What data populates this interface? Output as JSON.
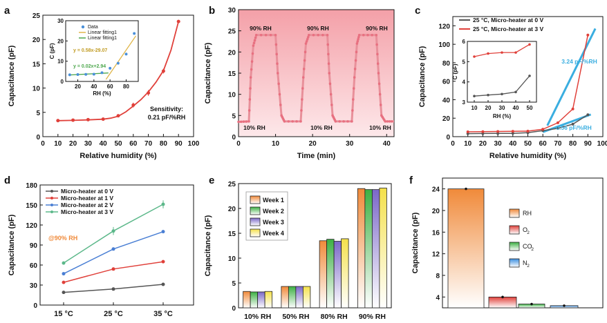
{
  "colors": {
    "red": "#e0403a",
    "blue": "#4a7fd4",
    "grey": "#555555",
    "green": "#5cb88a",
    "pink": "#e8909a",
    "cyan": "#3aaee0",
    "fit_yellow": "#e0b64a",
    "fit_green": "#4aa64a",
    "orange": "#f08a3a",
    "bar_green": "#3cb043",
    "purple": "#7b68c8",
    "yellow": "#f4e04a"
  },
  "panel_labels": [
    "a",
    "b",
    "c",
    "d",
    "e",
    "f"
  ],
  "chart_data": [
    {
      "id": "a",
      "type": "scatter",
      "title": "",
      "xlabel": "Relative humidity (%)",
      "ylabel": "Capacitance (pF)",
      "xlim": [
        0,
        100
      ],
      "ylim": [
        0,
        25
      ],
      "xticks": [
        "0",
        "10",
        "20",
        "30",
        "40",
        "50",
        "60",
        "70",
        "80",
        "90",
        "100"
      ],
      "yticks": [
        "0",
        "5",
        "10",
        "15",
        "20",
        "25"
      ],
      "series": [
        {
          "name": "Data",
          "x": [
            10,
            20,
            30,
            40,
            50,
            60,
            70,
            80,
            90
          ],
          "y": [
            3.3,
            3.4,
            3.5,
            3.6,
            4.3,
            6.5,
            9.0,
            13.5,
            23.7
          ],
          "err": [
            0.1,
            0.1,
            0.1,
            0.1,
            0.2,
            0.5,
            0.6,
            0.5,
            0.3
          ]
        }
      ],
      "fit_curve": {
        "x": [
          10,
          20,
          30,
          40,
          45,
          50,
          55,
          60,
          65,
          70,
          75,
          80,
          85,
          90
        ],
        "y": [
          3.3,
          3.35,
          3.45,
          3.6,
          3.8,
          4.2,
          5.1,
          6.3,
          7.6,
          9.2,
          11.2,
          13.6,
          17.8,
          23.7
        ]
      },
      "annotations": [
        "Sensitivity:",
        "0.21 pF/%RH"
      ],
      "inset": {
        "xlabel": "RH (%)",
        "ylabel": "C (pF)",
        "xlim": [
          5,
          95
        ],
        "ylim": [
          0,
          30
        ],
        "xticks": [
          "20",
          "40",
          "60",
          "80"
        ],
        "yticks": [
          "0",
          "10",
          "20",
          "30"
        ],
        "legend": [
          "Data",
          "Linear fitting1",
          "Linear fitting1"
        ],
        "points": {
          "x": [
            10,
            20,
            30,
            40,
            50,
            60,
            70,
            80,
            90
          ],
          "y": [
            3.3,
            3.4,
            3.5,
            3.6,
            4.3,
            6.5,
            9.0,
            13.5,
            23.7
          ]
        },
        "fit_low": {
          "x": [
            10,
            58
          ],
          "y": [
            3.2,
            4.2
          ],
          "label": "y = 0.02x+2.94"
        },
        "fit_high": {
          "x": [
            55,
            92
          ],
          "y": [
            1.0,
            22.5
          ],
          "label": "y = 0.58x-29.07"
        }
      }
    },
    {
      "id": "b",
      "type": "line",
      "title": "",
      "xlabel": "Time (min)",
      "ylabel": "Capacitance (pF)",
      "xlim": [
        0,
        42
      ],
      "ylim": [
        0,
        30
      ],
      "xticks": [
        "0",
        "10",
        "20",
        "30",
        "40"
      ],
      "yticks": [
        "0",
        "5",
        "10",
        "15",
        "20",
        "25",
        "30"
      ],
      "series": [
        {
          "name": "Capacitance",
          "x": [
            0,
            2.8,
            3.3,
            4.0,
            4.8,
            10.0,
            10.6,
            11.6,
            12.4,
            16.8,
            17.5,
            18.2,
            19.0,
            24.0,
            24.5,
            25.4,
            26.2,
            30.6,
            31.3,
            32.0,
            32.6,
            37.2,
            37.8,
            38.6,
            39.6,
            42
          ],
          "y": [
            3.5,
            3.6,
            14,
            21.5,
            24.0,
            24.0,
            15,
            5,
            3.6,
            3.6,
            14,
            22,
            24.0,
            24.0,
            15,
            5,
            3.6,
            3.6,
            14,
            22,
            24.0,
            24.0,
            15,
            5,
            3.6,
            3.6
          ]
        }
      ],
      "annotations": [
        "90% RH",
        "90% RH",
        "90% RH",
        "10% RH",
        "10% RH",
        "10% RH"
      ]
    },
    {
      "id": "c",
      "type": "line",
      "title": "",
      "xlabel": "Relative humidity (%)",
      "ylabel": "Capacitance (pF)",
      "xlim": [
        0,
        100
      ],
      "ylim": [
        0,
        130
      ],
      "xticks": [
        "0",
        "10",
        "20",
        "30",
        "40",
        "50",
        "60",
        "70",
        "80",
        "90",
        "100"
      ],
      "yticks": [
        "0",
        "20",
        "40",
        "60",
        "80",
        "100",
        "120"
      ],
      "series": [
        {
          "name": "25 °C, Micro-heater at 0 V",
          "x": [
            10,
            20,
            30,
            40,
            50,
            60,
            70,
            80,
            90
          ],
          "y": [
            3.3,
            3.4,
            3.5,
            3.6,
            4.3,
            6.5,
            9.0,
            13.5,
            23.7
          ]
        },
        {
          "name": "25 °C, Micro-heater at 3 V",
          "x": [
            10,
            20,
            30,
            40,
            50,
            60,
            70,
            80,
            90
          ],
          "y": [
            5.2,
            5.4,
            5.6,
            5.8,
            6.0,
            8,
            15,
            30,
            110
          ]
        }
      ],
      "fits": [
        {
          "label": "3.24 pF/%RH",
          "x": [
            63,
            95
          ],
          "y": [
            12,
            117
          ]
        },
        {
          "label": "0.56 pF/%RH",
          "x": [
            60,
            92
          ],
          "y": [
            5,
            24
          ]
        }
      ],
      "inset": {
        "xlabel": "RH (%)",
        "ylabel": "C (pF)",
        "xlim": [
          5,
          55
        ],
        "ylim": [
          3,
          6
        ],
        "xticks": [
          "10",
          "20",
          "30",
          "40",
          "50"
        ],
        "yticks": [
          "3",
          "4",
          "5",
          "6"
        ],
        "series": [
          {
            "name": "0 V",
            "x": [
              10,
              20,
              30,
              40,
              50
            ],
            "y": [
              3.3,
              3.35,
              3.4,
              3.5,
              4.3
            ]
          },
          {
            "name": "3 V",
            "x": [
              10,
              20,
              30,
              40,
              50
            ],
            "y": [
              5.25,
              5.4,
              5.45,
              5.45,
              5.85
            ]
          }
        ]
      }
    },
    {
      "id": "d",
      "type": "line",
      "title": "",
      "xlabel": "",
      "ylabel": "Capacitance (pF)",
      "categories": [
        "15 °C",
        "25 °C",
        "35 °C"
      ],
      "ylim": [
        0,
        180
      ],
      "yticks": [
        "0",
        "30",
        "60",
        "90",
        "120",
        "150",
        "180"
      ],
      "series": [
        {
          "name": "Micro-heater at 0 V",
          "values": [
            19,
            24,
            31
          ]
        },
        {
          "name": "Micro-heater at 1 V",
          "values": [
            34,
            54,
            65
          ]
        },
        {
          "name": "Micro-heater at 2 V",
          "values": [
            47,
            84,
            110
          ]
        },
        {
          "name": "Micro-heater at 3 V",
          "values": [
            63,
            111,
            151
          ]
        }
      ],
      "annotations": [
        "@90% RH"
      ]
    },
    {
      "id": "e",
      "type": "bar",
      "title": "",
      "xlabel": "",
      "ylabel": "Capacitance (pF)",
      "categories": [
        "10% RH",
        "50% RH",
        "80% RH",
        "90% RH"
      ],
      "ylim": [
        0,
        25
      ],
      "yticks": [
        "0",
        "5",
        "10",
        "15",
        "20",
        "25"
      ],
      "series": [
        {
          "name": "Week 1",
          "values": [
            3.3,
            4.3,
            13.5,
            24.0
          ]
        },
        {
          "name": "Week 2",
          "values": [
            3.2,
            4.3,
            13.8,
            23.8
          ]
        },
        {
          "name": "Week 3",
          "values": [
            3.2,
            4.3,
            13.4,
            23.8
          ]
        },
        {
          "name": "Week 4",
          "values": [
            3.3,
            4.3,
            13.9,
            24.1
          ]
        }
      ]
    },
    {
      "id": "f",
      "type": "bar",
      "title": "",
      "xlabel": "",
      "ylabel": "Capacitance (pF)",
      "categories": [
        "RH",
        "O2",
        "CO2",
        "N2"
      ],
      "ylim": [
        2,
        26
      ],
      "yticks": [
        "4",
        "8",
        "12",
        "16",
        "20",
        "24"
      ],
      "values": [
        24.0,
        4.0,
        2.7,
        2.4
      ],
      "legend": [
        {
          "main": "RH",
          "sub": ""
        },
        {
          "main": "O",
          "sub": "2"
        },
        {
          "main": "CO",
          "sub": "2"
        },
        {
          "main": "N",
          "sub": "2"
        }
      ]
    }
  ]
}
